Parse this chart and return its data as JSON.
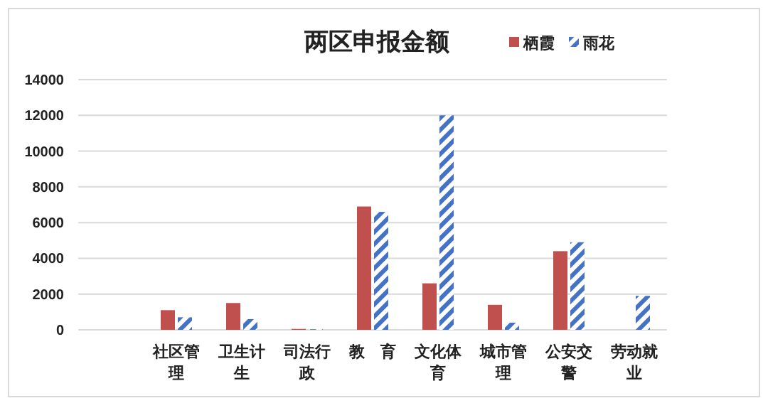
{
  "chart_data": {
    "type": "bar",
    "title": "两区申报金额",
    "categories": [
      null,
      "社区管理",
      "卫生计生",
      "司法行政",
      "教　育",
      "文化体育",
      "城市管理",
      "公安交警",
      "劳动就业"
    ],
    "series": [
      {
        "name": "栖霞",
        "color": "#c0504d",
        "values": [
          null,
          1100,
          1500,
          50,
          6900,
          2600,
          1400,
          4400,
          null
        ]
      },
      {
        "name": "雨花",
        "color": "#4472c4",
        "values": [
          null,
          700,
          600,
          30,
          6600,
          12000,
          400,
          4900,
          1900
        ]
      }
    ],
    "ylim": [
      0,
      14000
    ],
    "yticks": [
      0,
      2000,
      4000,
      6000,
      8000,
      10000,
      12000,
      14000
    ],
    "grid": "y",
    "legend": "top right"
  }
}
